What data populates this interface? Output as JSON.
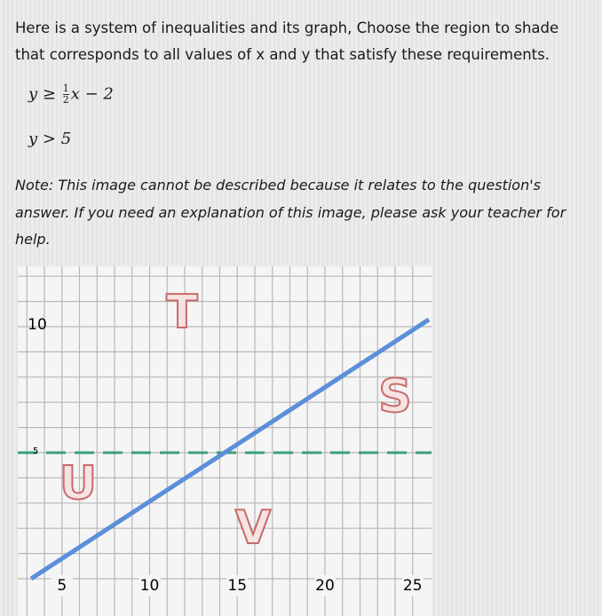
{
  "question": {
    "text": [
      "Here is a system of inequalities and its graph, Choose the region to shade",
      "that corresponds to all values of x and y that satisfy these requirements."
    ],
    "inequalities": [
      {
        "left": "y ≥",
        "numerator": "1",
        "denominator": "2",
        "right": "x − 2"
      },
      {
        "left": "y > 5"
      }
    ],
    "note": [
      "Note: This image cannot be described because it relates to the question's",
      "answer. If you need an explanation of this image, please ask your teacher for",
      "help."
    ]
  },
  "graph": {
    "x_labels": [
      5,
      10,
      15,
      20,
      25
    ],
    "y_labels": [
      10,
      5
    ],
    "regions": [
      "T",
      "S",
      "U",
      "V"
    ]
  }
}
